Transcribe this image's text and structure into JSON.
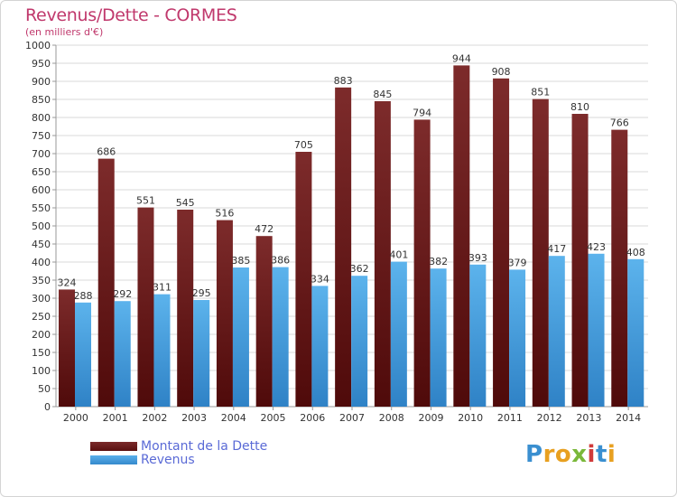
{
  "header": {
    "title": "Revenus/Dette - CORMES",
    "subtitle": "(en milliers d'€)"
  },
  "legend": {
    "dette_label": "Montant de la Dette",
    "revenus_label": "Revenus"
  },
  "logo": {
    "letters": [
      "P",
      "r",
      "o",
      "x",
      "i",
      "t",
      "i"
    ],
    "colors": [
      "#3a8fd0",
      "#e8a020",
      "#e8a020",
      "#7ab83a",
      "#d03a3a",
      "#3a8fd0",
      "#e8a020"
    ]
  },
  "colors": {
    "dette": "#6e1f1f",
    "revenus": "#4a9fe0",
    "grid": "#d9d9d9",
    "title": "#c0386c"
  },
  "chart_data": {
    "type": "bar",
    "title": "Revenus/Dette - CORMES",
    "subtitle": "(en milliers d'€)",
    "categories": [
      "2000",
      "2001",
      "2002",
      "2003",
      "2004",
      "2005",
      "2006",
      "2007",
      "2008",
      "2009",
      "2010",
      "2011",
      "2012",
      "2013",
      "2014"
    ],
    "series": [
      {
        "name": "Montant de la Dette",
        "values": [
          324,
          686,
          551,
          545,
          516,
          472,
          705,
          883,
          845,
          794,
          944,
          908,
          851,
          810,
          766
        ]
      },
      {
        "name": "Revenus",
        "values": [
          288,
          292,
          311,
          295,
          385,
          386,
          334,
          362,
          401,
          382,
          393,
          379,
          417,
          423,
          408
        ]
      }
    ],
    "ylim": [
      0,
      1000
    ],
    "ytick_step": 50,
    "grid": true,
    "legend_position": "bottom-left"
  }
}
